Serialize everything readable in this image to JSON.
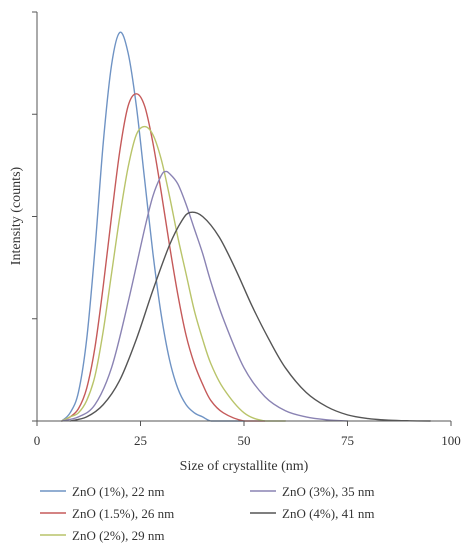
{
  "chart_data": {
    "type": "line",
    "title": "",
    "xlabel": "Size of crystallite (nm)",
    "ylabel": "Intensity (counts)",
    "xlim": [
      0,
      100
    ],
    "ylim": [
      0,
      1.0
    ],
    "x_ticks": [
      "0",
      "25",
      "50",
      "75",
      "100"
    ],
    "y_ticks_labeled": false,
    "grid": false,
    "legend": "bottom",
    "series": [
      {
        "name": "ZnO (1%), 22 nm",
        "color": "#6f93c4",
        "peak_x": 20,
        "peak_y": 0.95,
        "x": [
          6,
          8,
          10,
          12,
          14,
          16,
          18,
          20,
          22,
          24,
          26,
          28,
          30,
          32,
          34,
          36,
          38,
          40,
          42,
          45,
          50
        ],
        "y": [
          0.0,
          0.02,
          0.07,
          0.2,
          0.42,
          0.68,
          0.87,
          0.95,
          0.9,
          0.77,
          0.59,
          0.41,
          0.26,
          0.15,
          0.08,
          0.04,
          0.02,
          0.01,
          0.0,
          0.0,
          0.0
        ]
      },
      {
        "name": "ZnO (1.5%), 26 nm",
        "color": "#c55a5a",
        "peak_x": 24,
        "peak_y": 0.8,
        "x": [
          6,
          8,
          10,
          12,
          14,
          16,
          18,
          20,
          22,
          24,
          26,
          28,
          30,
          32,
          34,
          36,
          38,
          40,
          42,
          45,
          50,
          55
        ],
        "y": [
          0.0,
          0.01,
          0.03,
          0.08,
          0.18,
          0.33,
          0.5,
          0.66,
          0.77,
          0.8,
          0.77,
          0.68,
          0.56,
          0.43,
          0.31,
          0.21,
          0.14,
          0.09,
          0.05,
          0.02,
          0.0,
          0.0
        ]
      },
      {
        "name": "ZnO (2%), 29 nm",
        "color": "#b9c46a",
        "peak_x": 26,
        "peak_y": 0.72,
        "x": [
          6,
          8,
          10,
          12,
          14,
          16,
          18,
          20,
          22,
          24,
          26,
          28,
          30,
          32,
          34,
          36,
          38,
          40,
          42,
          45,
          50,
          55,
          60
        ],
        "y": [
          0.0,
          0.01,
          0.02,
          0.05,
          0.11,
          0.22,
          0.36,
          0.5,
          0.62,
          0.7,
          0.72,
          0.7,
          0.64,
          0.55,
          0.45,
          0.36,
          0.27,
          0.2,
          0.14,
          0.08,
          0.02,
          0.0,
          0.0
        ]
      },
      {
        "name": "ZnO (3%), 35 nm",
        "color": "#8a83b3",
        "peak_x": 31,
        "peak_y": 0.61,
        "x": [
          6,
          10,
          14,
          18,
          22,
          26,
          28,
          30,
          31,
          32,
          34,
          36,
          38,
          40,
          42,
          45,
          50,
          55,
          60,
          65,
          70,
          75
        ],
        "y": [
          0.0,
          0.01,
          0.04,
          0.13,
          0.29,
          0.47,
          0.55,
          0.6,
          0.61,
          0.605,
          0.58,
          0.53,
          0.47,
          0.41,
          0.34,
          0.25,
          0.13,
          0.06,
          0.025,
          0.01,
          0.003,
          0.0
        ]
      },
      {
        "name": "ZnO (4%), 41 nm",
        "color": "#555555",
        "peak_x": 37,
        "peak_y": 0.51,
        "x": [
          8,
          12,
          16,
          20,
          24,
          28,
          32,
          35,
          37,
          40,
          44,
          48,
          52,
          56,
          60,
          65,
          70,
          75,
          80,
          85,
          90,
          95
        ],
        "y": [
          0.0,
          0.01,
          0.04,
          0.1,
          0.2,
          0.32,
          0.43,
          0.49,
          0.51,
          0.5,
          0.45,
          0.37,
          0.28,
          0.2,
          0.13,
          0.07,
          0.035,
          0.015,
          0.006,
          0.002,
          0.0005,
          0.0
        ]
      }
    ]
  }
}
